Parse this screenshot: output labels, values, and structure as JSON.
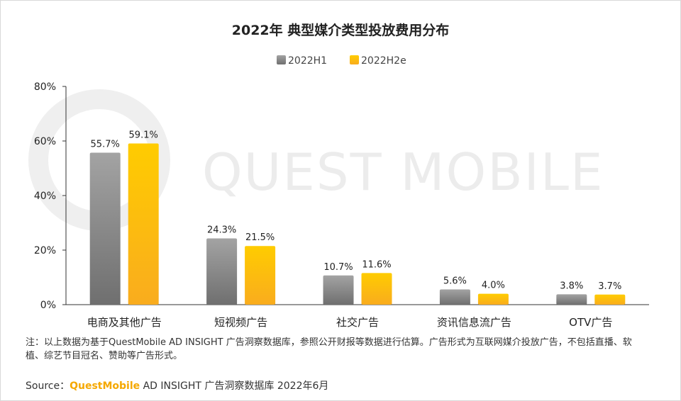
{
  "watermark": "QUEST MOBILE",
  "note": "注：以上数据为基于QuestMobile AD INSIGHT 广告洞察数据库，参照公开财报等数据进行估算。广告形式为互联网媒介投放广告，不包括直播、软植、综艺节目冠名、赞助等广告形式。",
  "source": {
    "label": "Source：",
    "brand": "QuestMobile",
    "rest": " AD INSIGHT 广告洞察数据库 2022年6月"
  },
  "chart_data": {
    "type": "bar",
    "title": "2022年 典型媒介类型投放费用分布",
    "categories": [
      "电商及其他广告",
      "短视频广告",
      "社交广告",
      "资讯信息流广告",
      "OTV广告"
    ],
    "series": [
      {
        "name": "2022H1",
        "values": [
          55.7,
          24.3,
          10.7,
          5.6,
          3.8
        ],
        "labels": [
          "55.7%",
          "24.3%",
          "10.7%",
          "5.6%",
          "3.8%"
        ],
        "color": "#8c8c8c"
      },
      {
        "name": "2022H2e",
        "values": [
          59.1,
          21.5,
          11.6,
          4.0,
          3.7
        ],
        "labels": [
          "59.1%",
          "21.5%",
          "11.6%",
          "4.0%",
          "3.7%"
        ],
        "color": "#ffc000"
      }
    ],
    "yticks": [
      "0%",
      "20%",
      "40%",
      "60%",
      "80%"
    ],
    "ylim": [
      0,
      80
    ],
    "xlabel": "",
    "ylabel": "",
    "legend": "top-center",
    "grid": false
  }
}
